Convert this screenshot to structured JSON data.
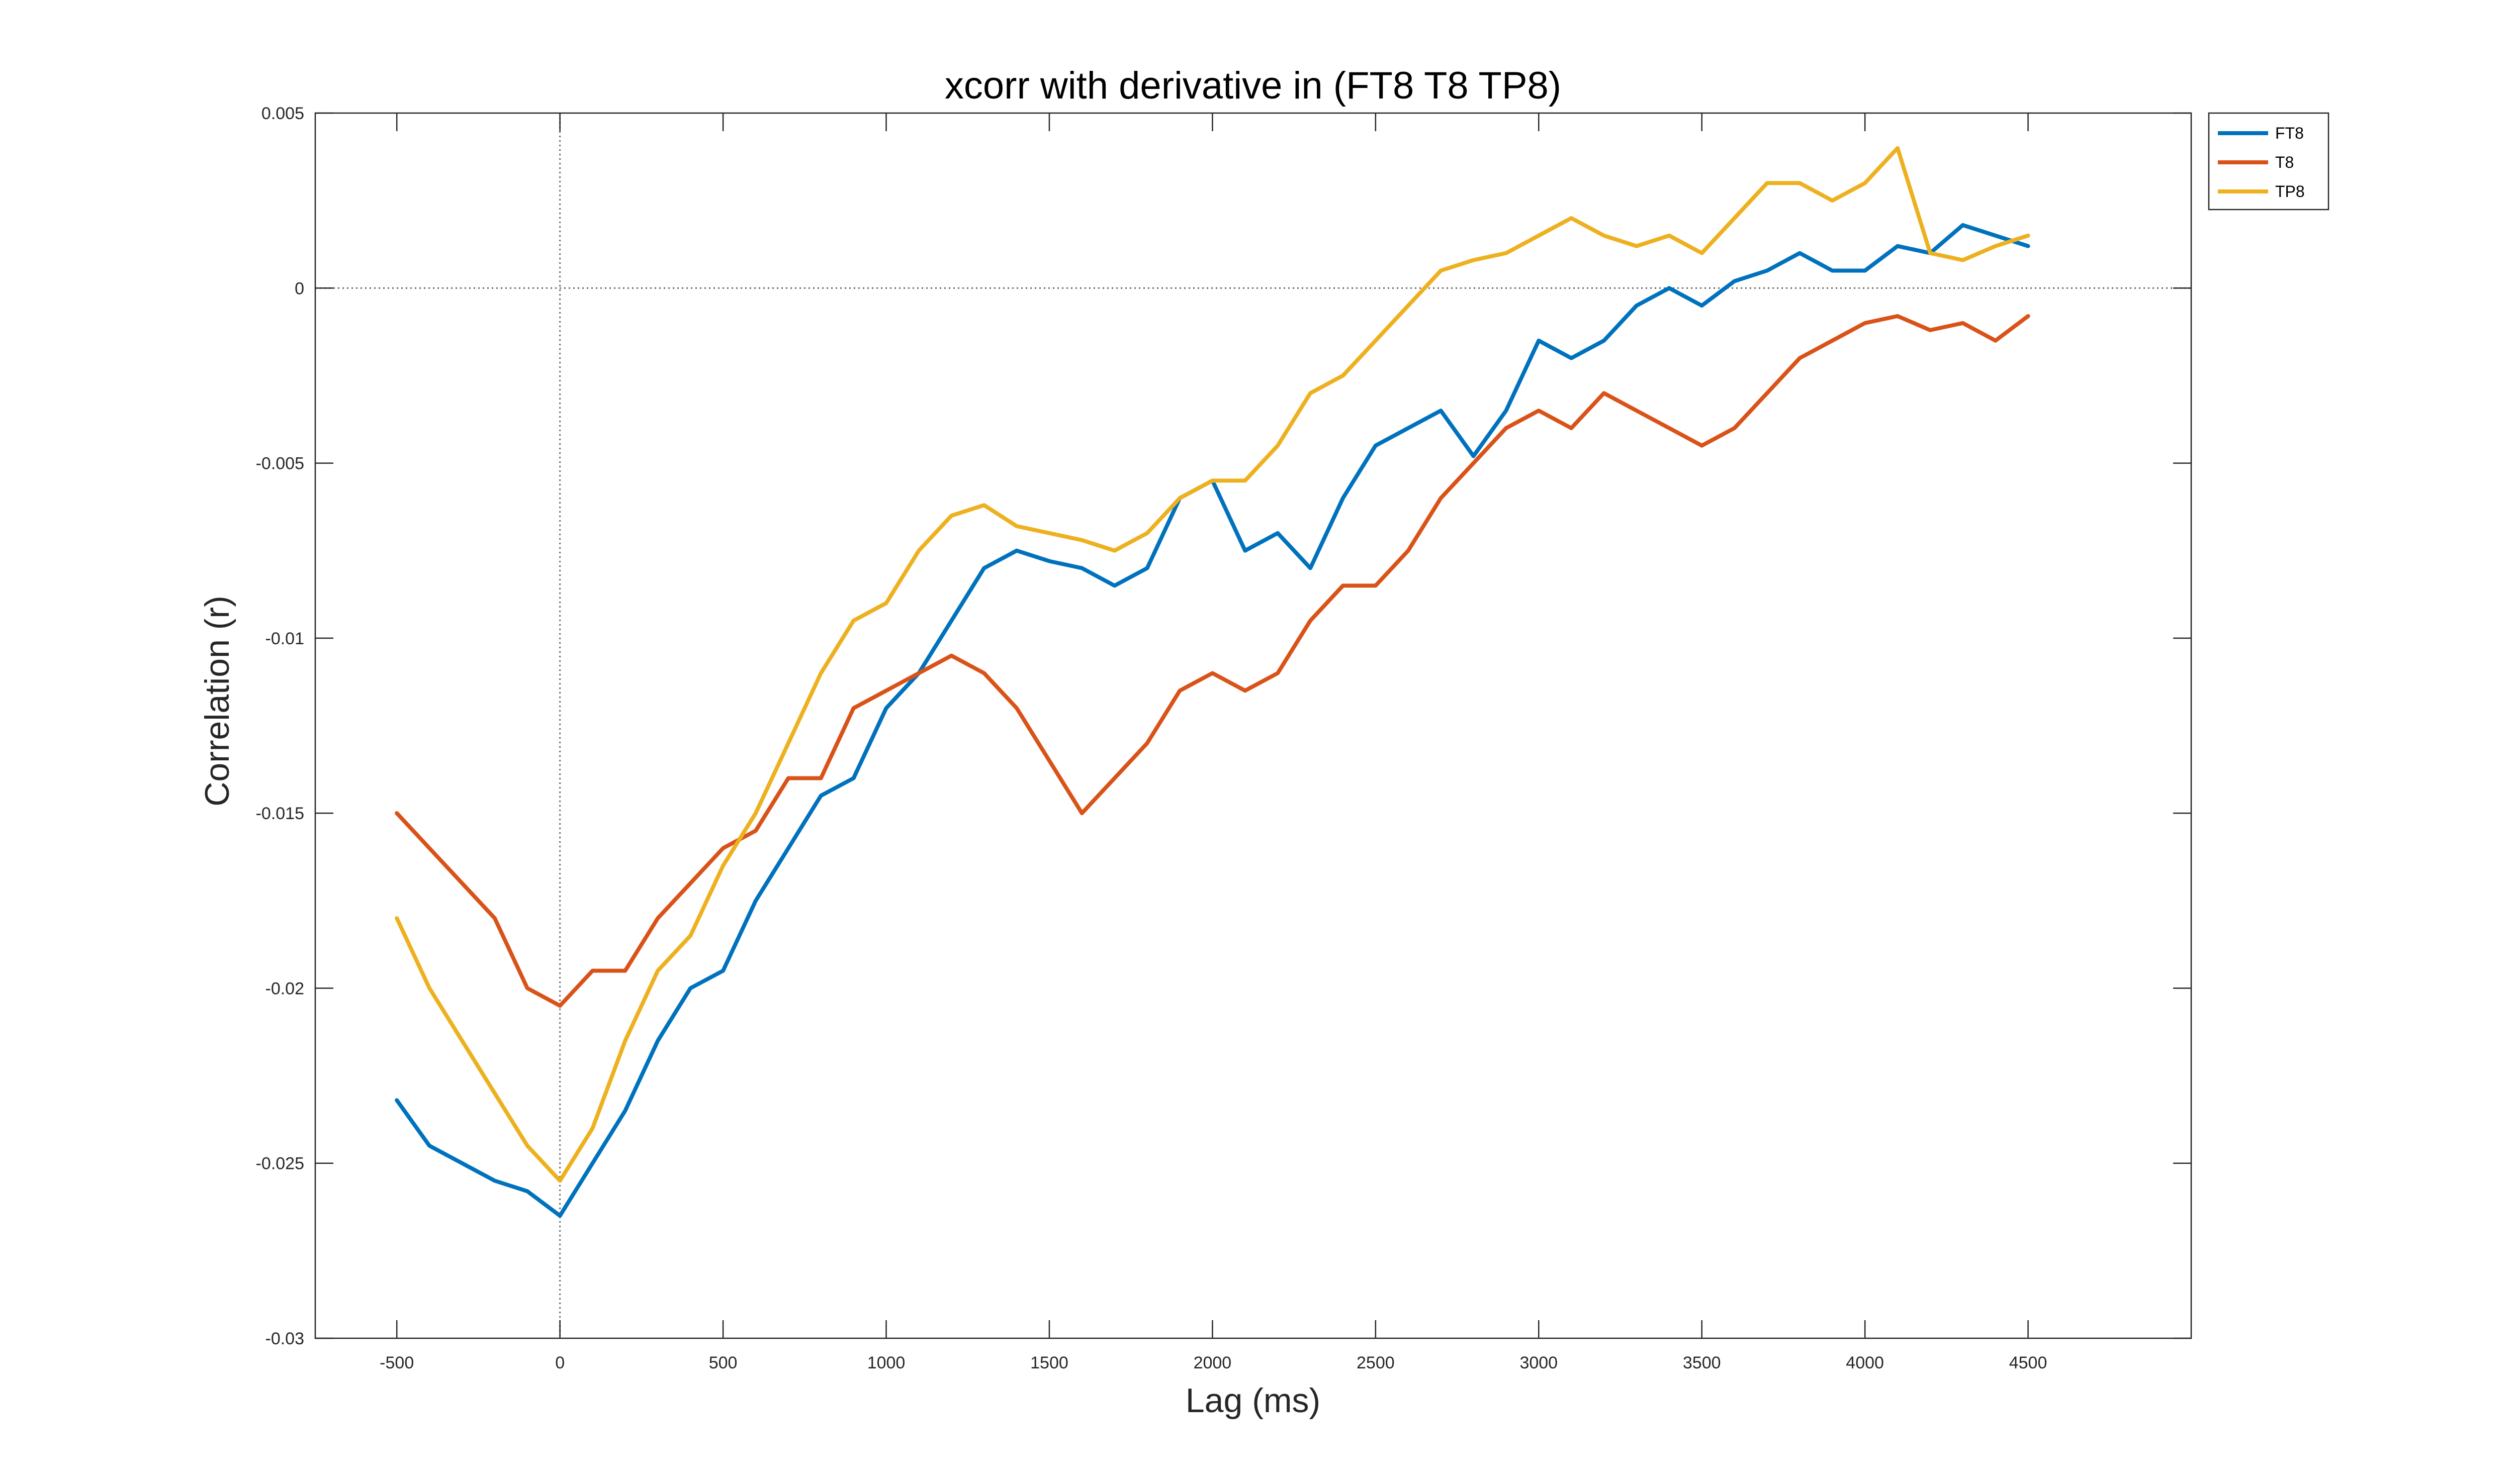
{
  "chart_data": {
    "type": "line",
    "title": "xcorr with derivative in (FT8 T8 TP8)",
    "xlabel": "Lag (ms)",
    "ylabel": "Correlation (r)",
    "xlim": [
      -750,
      5000
    ],
    "ylim": [
      -0.03,
      0.005
    ],
    "xticks": [
      -500,
      0,
      500,
      1000,
      1500,
      2000,
      2500,
      3000,
      3500,
      4000,
      4500
    ],
    "xtick_labels": [
      "-500",
      "0",
      "500",
      "1000",
      "1500",
      "2000",
      "2500",
      "3000",
      "3500",
      "4000",
      "4500"
    ],
    "yticks": [
      -0.03,
      -0.025,
      -0.02,
      -0.015,
      -0.01,
      -0.005,
      0,
      0.005
    ],
    "ytick_labels": [
      "-0.03",
      "-0.025",
      "-0.02",
      "-0.015",
      "-0.01",
      "-0.005",
      "0",
      "0.005"
    ],
    "grid": false,
    "reference_lines": {
      "x": 0,
      "y": 0
    },
    "legend_position": "top-right outside",
    "x": [
      -500,
      -400,
      -300,
      -200,
      -100,
      0,
      100,
      200,
      300,
      400,
      500,
      600,
      700,
      800,
      900,
      1000,
      1100,
      1200,
      1300,
      1400,
      1500,
      1600,
      1700,
      1800,
      1900,
      2000,
      2100,
      2200,
      2300,
      2400,
      2500,
      2600,
      2700,
      2800,
      2900,
      3000,
      3100,
      3200,
      3300,
      3400,
      3500,
      3600,
      3700,
      3800,
      3900,
      4000,
      4100,
      4200,
      4300,
      4400,
      4500
    ],
    "series": [
      {
        "name": "FT8",
        "color": "#0072BD",
        "values": [
          -0.0232,
          -0.0245,
          -0.025,
          -0.0255,
          -0.0258,
          -0.0265,
          -0.025,
          -0.0235,
          -0.0215,
          -0.02,
          -0.0195,
          -0.0175,
          -0.016,
          -0.0145,
          -0.014,
          -0.012,
          -0.011,
          -0.0095,
          -0.008,
          -0.0075,
          -0.0078,
          -0.008,
          -0.0085,
          -0.008,
          -0.006,
          -0.0055,
          -0.0075,
          -0.007,
          -0.008,
          -0.006,
          -0.0045,
          -0.004,
          -0.0035,
          -0.0048,
          -0.0035,
          -0.0015,
          -0.002,
          -0.0015,
          -0.0005,
          0.0,
          -0.0005,
          0.0002,
          0.0005,
          0.001,
          0.0005,
          0.0005,
          0.0012,
          0.001,
          0.0018,
          0.0015,
          0.0012
        ]
      },
      {
        "name": "T8",
        "color": "#D95319",
        "values": [
          -0.015,
          -0.016,
          -0.017,
          -0.018,
          -0.02,
          -0.0205,
          -0.0195,
          -0.0195,
          -0.018,
          -0.017,
          -0.016,
          -0.0155,
          -0.014,
          -0.014,
          -0.012,
          -0.0115,
          -0.011,
          -0.0105,
          -0.011,
          -0.012,
          -0.0135,
          -0.015,
          -0.014,
          -0.013,
          -0.0115,
          -0.011,
          -0.0115,
          -0.011,
          -0.0095,
          -0.0085,
          -0.0085,
          -0.0075,
          -0.006,
          -0.005,
          -0.004,
          -0.0035,
          -0.004,
          -0.003,
          -0.0035,
          -0.004,
          -0.0045,
          -0.004,
          -0.003,
          -0.002,
          -0.0015,
          -0.001,
          -0.0008,
          -0.0012,
          -0.001,
          -0.0015,
          -0.0008
        ]
      },
      {
        "name": "TP8",
        "color": "#EDB120",
        "values": [
          -0.018,
          -0.02,
          -0.0215,
          -0.023,
          -0.0245,
          -0.0255,
          -0.024,
          -0.0215,
          -0.0195,
          -0.0185,
          -0.0165,
          -0.015,
          -0.013,
          -0.011,
          -0.0095,
          -0.009,
          -0.0075,
          -0.0065,
          -0.0062,
          -0.0068,
          -0.007,
          -0.0072,
          -0.0075,
          -0.007,
          -0.006,
          -0.0055,
          -0.0055,
          -0.0045,
          -0.003,
          -0.0025,
          -0.0015,
          -0.0005,
          0.0005,
          0.0008,
          0.001,
          0.0015,
          0.002,
          0.0015,
          0.0012,
          0.0015,
          0.001,
          0.002,
          0.003,
          0.003,
          0.0025,
          0.003,
          0.004,
          0.001,
          0.0008,
          0.0012,
          0.0015
        ]
      }
    ]
  }
}
